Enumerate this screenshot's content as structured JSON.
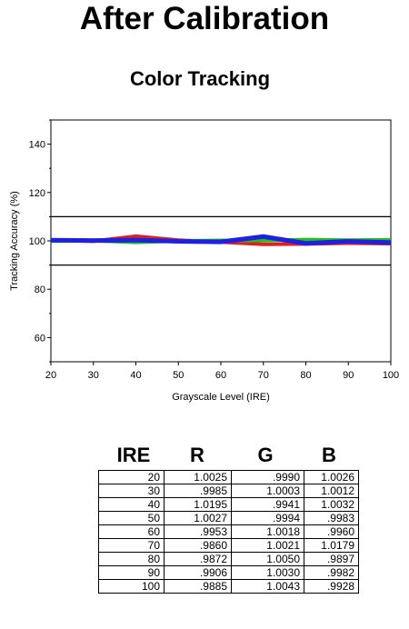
{
  "title": "After Calibration",
  "subtitle": "Color Tracking",
  "chart_data": {
    "type": "line",
    "xlabel": "Grayscale Level (IRE)",
    "ylabel": "Tracking Accuracy (%)",
    "x": [
      20,
      30,
      40,
      50,
      60,
      70,
      80,
      90,
      100
    ],
    "xlim": [
      20,
      100
    ],
    "ylim": [
      50,
      150
    ],
    "yticks": [
      60,
      80,
      100,
      120,
      140
    ],
    "reference_lines": [
      110,
      90
    ],
    "grid": false,
    "series": [
      {
        "color": "#e02020",
        "values": [
          100.25,
          99.85,
          101.95,
          100.27,
          99.53,
          98.6,
          98.72,
          99.06,
          98.85
        ]
      },
      {
        "color": "#20c020",
        "values": [
          99.9,
          100.03,
          99.41,
          99.94,
          100.18,
          100.21,
          100.5,
          100.3,
          100.43
        ]
      },
      {
        "color": "#2020e0",
        "values": [
          100.26,
          100.12,
          100.32,
          99.83,
          99.6,
          101.79,
          98.97,
          99.82,
          99.28
        ]
      }
    ]
  },
  "table": {
    "headers": [
      "IRE",
      "R",
      "G",
      "B"
    ],
    "rows": [
      [
        "20",
        "1.0025",
        ".9990",
        "1.0026"
      ],
      [
        "30",
        ".9985",
        "1.0003",
        "1.0012"
      ],
      [
        "40",
        "1.0195",
        ".9941",
        "1.0032"
      ],
      [
        "50",
        "1.0027",
        ".9994",
        ".9983"
      ],
      [
        "60",
        ".9953",
        "1.0018",
        ".9960"
      ],
      [
        "70",
        ".9860",
        "1.0021",
        "1.0179"
      ],
      [
        "80",
        ".9872",
        "1.0050",
        ".9897"
      ],
      [
        "90",
        ".9906",
        "1.0030",
        ".9982"
      ],
      [
        "100",
        ".9885",
        "1.0043",
        ".9928"
      ]
    ]
  }
}
